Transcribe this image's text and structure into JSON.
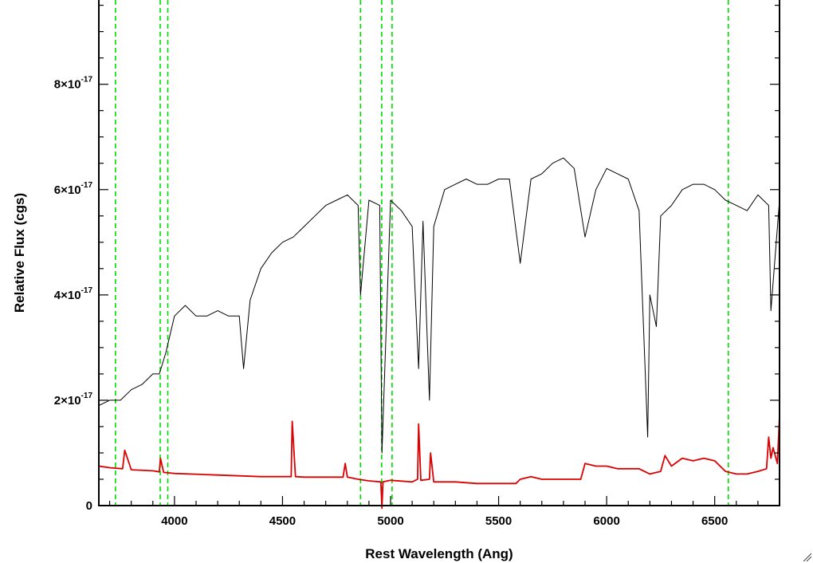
{
  "chart_data": {
    "type": "line",
    "title": "",
    "xlabel": "Rest Wavelength (Ang)",
    "ylabel": "Relative Flux (cgs)",
    "xlim": [
      3650,
      6800
    ],
    "ylim": [
      0,
      9.6e-17
    ],
    "x_ticks": [
      {
        "value": 4000,
        "label": "4000"
      },
      {
        "value": 4500,
        "label": "4500"
      },
      {
        "value": 5000,
        "label": "5000"
      },
      {
        "value": 5500,
        "label": "5500"
      },
      {
        "value": 6000,
        "label": "6000"
      },
      {
        "value": 6500,
        "label": "6500"
      }
    ],
    "y_ticks": [
      {
        "value": 0,
        "mantissa": "0",
        "exponent": ""
      },
      {
        "value": 2e-17,
        "mantissa": "2×10",
        "exponent": "-17"
      },
      {
        "value": 4e-17,
        "mantissa": "4×10",
        "exponent": "-17"
      },
      {
        "value": 6e-17,
        "mantissa": "6×10",
        "exponent": "-17"
      },
      {
        "value": 8e-17,
        "mantissa": "8×10",
        "exponent": "-17"
      }
    ],
    "grid": false,
    "line_markers": {
      "color": "#00dd00",
      "style": "dashed",
      "x": [
        3727,
        3934,
        3969,
        4861,
        4959,
        5007,
        6563
      ]
    },
    "series": [
      {
        "role": "spectrum",
        "color": "#000000",
        "x": [
          3650,
          3700,
          3750,
          3800,
          3850,
          3900,
          3930,
          3960,
          4000,
          4050,
          4100,
          4150,
          4200,
          4250,
          4300,
          4320,
          4350,
          4400,
          4450,
          4500,
          4550,
          4600,
          4650,
          4700,
          4750,
          4800,
          4850,
          4861,
          4900,
          4950,
          4960,
          5000,
          5050,
          5100,
          5130,
          5150,
          5180,
          5200,
          5250,
          5300,
          5350,
          5400,
          5450,
          5500,
          5550,
          5600,
          5650,
          5700,
          5750,
          5800,
          5850,
          5900,
          5950,
          6000,
          6050,
          6100,
          6150,
          6190,
          6200,
          6230,
          6250,
          6300,
          6350,
          6400,
          6450,
          6500,
          6550,
          6600,
          6650,
          6700,
          6750,
          6760,
          6800
        ],
        "y": [
          1.9e-17,
          2e-17,
          2e-17,
          2.2e-17,
          2.3e-17,
          2.5e-17,
          2.5e-17,
          2.9e-17,
          3.6e-17,
          3.8e-17,
          3.6e-17,
          3.6e-17,
          3.7e-17,
          3.6e-17,
          3.6e-17,
          2.6e-17,
          3.9e-17,
          4.5e-17,
          4.8e-17,
          5e-17,
          5.1e-17,
          5.3e-17,
          5.5e-17,
          5.7e-17,
          5.8e-17,
          5.9e-17,
          5.7e-17,
          4e-17,
          5.8e-17,
          5.7e-17,
          1e-17,
          5.8e-17,
          5.6e-17,
          5.3e-17,
          2.6e-17,
          5.4e-17,
          2e-17,
          5.3e-17,
          6e-17,
          6.1e-17,
          6.2e-17,
          6.1e-17,
          6.1e-17,
          6.2e-17,
          6.2e-17,
          4.6e-17,
          6.2e-17,
          6.3e-17,
          6.5e-17,
          6.6e-17,
          6.4e-17,
          5.1e-17,
          6e-17,
          6.4e-17,
          6.3e-17,
          6.2e-17,
          5.6e-17,
          1.3e-17,
          4e-17,
          3.4e-17,
          5.5e-17,
          5.7e-17,
          6e-17,
          6.1e-17,
          6.1e-17,
          6e-17,
          5.8e-17,
          5.7e-17,
          5.6e-17,
          5.9e-17,
          5.7e-17,
          3.7e-17,
          5.8e-17
        ]
      },
      {
        "role": "error",
        "color": "#dd0000",
        "x": [
          3650,
          3700,
          3760,
          3770,
          3800,
          3900,
          3930,
          3935,
          3950,
          4000,
          4200,
          4400,
          4540,
          4545,
          4560,
          4600,
          4780,
          4790,
          4800,
          4850,
          4900,
          4955,
          4960,
          4965,
          5000,
          5100,
          5125,
          5130,
          5140,
          5180,
          5185,
          5200,
          5300,
          5400,
          5500,
          5580,
          5600,
          5650,
          5700,
          5800,
          5850,
          5880,
          5890,
          5900,
          5950,
          6000,
          6050,
          6100,
          6150,
          6200,
          6250,
          6270,
          6300,
          6350,
          6400,
          6450,
          6500,
          6550,
          6600,
          6650,
          6700,
          6740,
          6750,
          6760,
          6770,
          6790,
          6800
        ],
        "y": [
          7.5e-18,
          7.2e-18,
          7e-18,
          1.05e-17,
          6.8e-18,
          6.6e-18,
          6.4e-18,
          9e-18,
          6.3e-18,
          6.1e-18,
          5.8e-18,
          5.5e-18,
          5.5e-18,
          1.6e-17,
          5.5e-18,
          5.4e-18,
          5.4e-18,
          8e-18,
          5.4e-18,
          5e-18,
          4.7e-18,
          4.5e-18,
          -5e-19,
          4.5e-18,
          4.8e-18,
          4.5e-18,
          5e-18,
          1.55e-17,
          4.8e-18,
          5e-18,
          1e-17,
          4.5e-18,
          4.5e-18,
          4.2e-18,
          4.2e-18,
          4.2e-18,
          5e-18,
          5.5e-18,
          5e-18,
          5e-18,
          5e-18,
          5e-18,
          6.5e-18,
          8e-18,
          7.5e-18,
          7.5e-18,
          7e-18,
          7e-18,
          7e-18,
          6e-18,
          6.5e-18,
          9.5e-18,
          7.5e-18,
          9e-18,
          8.5e-18,
          9e-18,
          8.5e-18,
          6.5e-18,
          6e-18,
          6e-18,
          6.5e-18,
          7e-18,
          1.3e-17,
          9e-18,
          1.1e-17,
          8e-18,
          1.7e-17
        ]
      }
    ]
  }
}
